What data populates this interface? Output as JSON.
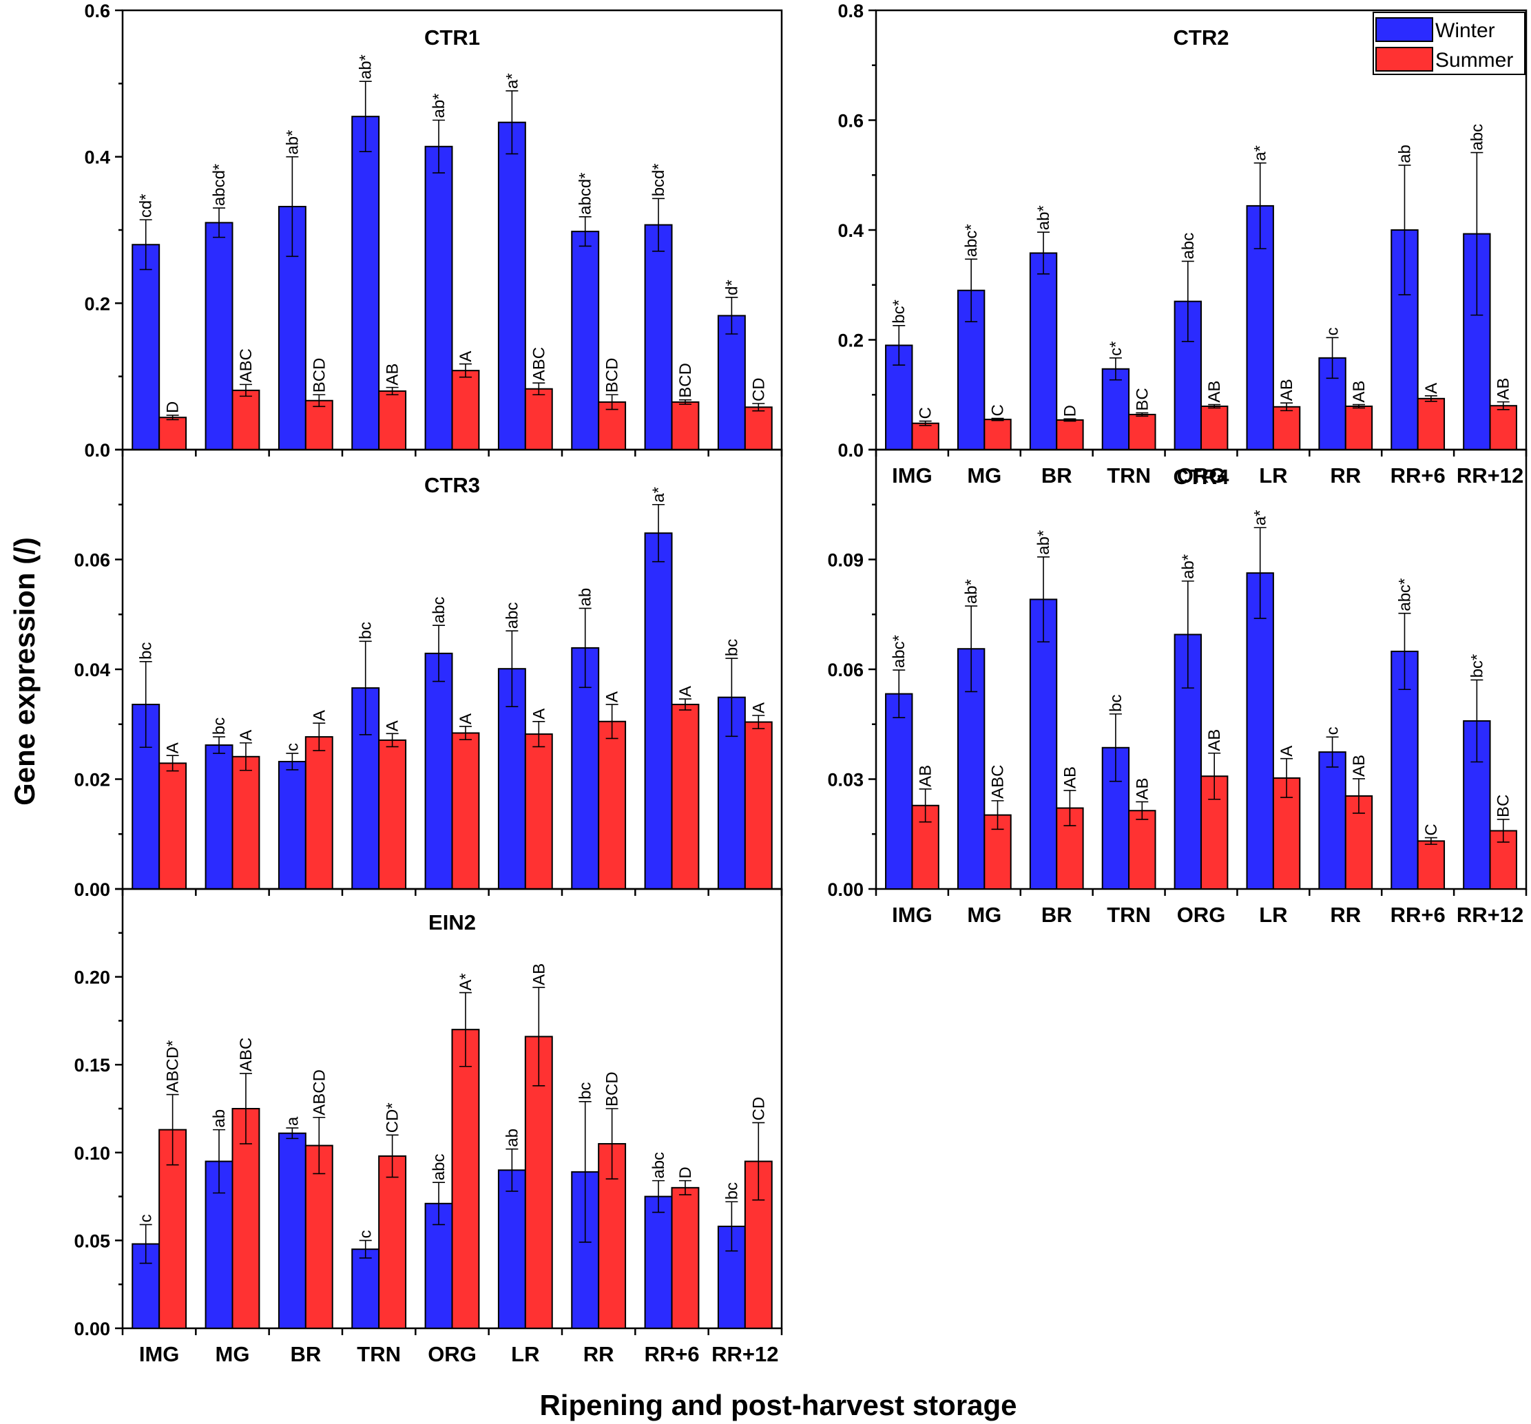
{
  "ylabel": "Gene expression (/)",
  "xlabel": "Ripening and post-harvest storage",
  "colors": {
    "winter": "#2b2bff",
    "summer": "#ff3232",
    "axis": "#000000"
  },
  "chart_data": [
    {
      "type": "bar",
      "title": "CTR1",
      "categories": [
        "IMG",
        "MG",
        "BR",
        "TRN",
        "ORG",
        "LR",
        "RR",
        "RR+6",
        "RR+12"
      ],
      "ylim": [
        0,
        0.6
      ],
      "yticks": [
        "0.0",
        "0.2",
        "0.4",
        "0.6"
      ],
      "series": [
        {
          "name": "Winter",
          "values": [
            0.28,
            0.31,
            0.332,
            0.455,
            0.414,
            0.447,
            0.298,
            0.307,
            0.183
          ],
          "errors": [
            0.034,
            0.02,
            0.068,
            0.048,
            0.036,
            0.043,
            0.02,
            0.036,
            0.025
          ],
          "labels": [
            "cd*",
            "abcd*",
            "ab*",
            "ab*",
            "ab*",
            "a*",
            "abcd*",
            "bcd*",
            "d*"
          ]
        },
        {
          "name": "Summer",
          "values": [
            0.044,
            0.081,
            0.067,
            0.08,
            0.108,
            0.083,
            0.065,
            0.065,
            0.058
          ],
          "errors": [
            0.003,
            0.008,
            0.008,
            0.005,
            0.009,
            0.008,
            0.01,
            0.003,
            0.005
          ],
          "labels": [
            "D",
            "ABC",
            "BCD",
            "AB",
            "A",
            "ABC",
            "BCD",
            "BCD",
            "CD"
          ]
        }
      ]
    },
    {
      "type": "bar",
      "title": "CTR2",
      "categories": [
        "IMG",
        "MG",
        "BR",
        "TRN",
        "ORG",
        "LR",
        "RR",
        "RR+6",
        "RR+12"
      ],
      "ylim": [
        0,
        0.8
      ],
      "yticks": [
        "0.0",
        "0.2",
        "0.4",
        "0.6",
        "0.8"
      ],
      "series": [
        {
          "name": "Winter",
          "values": [
            0.19,
            0.29,
            0.358,
            0.147,
            0.27,
            0.444,
            0.167,
            0.4,
            0.393
          ],
          "errors": [
            0.036,
            0.057,
            0.038,
            0.02,
            0.073,
            0.078,
            0.037,
            0.118,
            0.148
          ],
          "labels": [
            "bc*",
            "abc*",
            "ab*",
            "c*",
            "abc",
            "a*",
            "c",
            "ab",
            "abc"
          ]
        },
        {
          "name": "Summer",
          "values": [
            0.048,
            0.055,
            0.054,
            0.064,
            0.079,
            0.078,
            0.079,
            0.093,
            0.08
          ],
          "errors": [
            0.004,
            0.002,
            0.002,
            0.003,
            0.003,
            0.007,
            0.003,
            0.005,
            0.007
          ],
          "labels": [
            "C",
            "C",
            "D",
            "BC",
            "AB",
            "AB",
            "AB",
            "A",
            "AB"
          ]
        }
      ]
    },
    {
      "type": "bar",
      "title": "CTR3",
      "categories": [
        "IMG",
        "MG",
        "BR",
        "TRN",
        "ORG",
        "LR",
        "RR",
        "RR+6",
        "RR+12"
      ],
      "ylim": [
        0,
        0.08
      ],
      "yticks": [
        "0.00",
        "0.02",
        "0.04",
        "0.06"
      ],
      "series": [
        {
          "name": "Winter",
          "values": [
            0.0336,
            0.0262,
            0.0232,
            0.0366,
            0.0429,
            0.0401,
            0.0439,
            0.0648,
            0.0349
          ],
          "errors": [
            0.0078,
            0.0015,
            0.0015,
            0.0085,
            0.0051,
            0.0069,
            0.0072,
            0.0052,
            0.0071
          ],
          "labels": [
            "bc",
            "bc",
            "c",
            "bc",
            "abc",
            "abc",
            "ab",
            "a*",
            "bc"
          ]
        },
        {
          "name": "Summer",
          "values": [
            0.0229,
            0.0241,
            0.0277,
            0.0271,
            0.0284,
            0.0282,
            0.0305,
            0.0336,
            0.0304
          ],
          "errors": [
            0.0014,
            0.0025,
            0.0025,
            0.0012,
            0.0012,
            0.0023,
            0.0031,
            0.001,
            0.0012
          ],
          "labels": [
            "A",
            "A",
            "A",
            "A",
            "A",
            "A",
            "A",
            "A",
            "A"
          ]
        }
      ]
    },
    {
      "type": "bar",
      "title": "CTR4",
      "categories": [
        "IMG",
        "MG",
        "BR",
        "TRN",
        "ORG",
        "LR",
        "RR",
        "RR+6",
        "RR+12"
      ],
      "ylim": [
        0,
        0.12
      ],
      "yticks": [
        "0.00",
        "0.03",
        "0.06",
        "0.09"
      ],
      "series": [
        {
          "name": "Winter",
          "values": [
            0.0533,
            0.0656,
            0.0791,
            0.0386,
            0.0695,
            0.0863,
            0.0374,
            0.0649,
            0.0459
          ],
          "errors": [
            0.0065,
            0.0117,
            0.0116,
            0.0092,
            0.0146,
            0.0124,
            0.0041,
            0.0104,
            0.0112
          ],
          "labels": [
            "abc*",
            "ab*",
            "ab*",
            "bc",
            "ab*",
            "a*",
            "c",
            "abc*",
            "bc*"
          ]
        },
        {
          "name": "Summer",
          "values": [
            0.0228,
            0.0202,
            0.0221,
            0.0214,
            0.0308,
            0.0303,
            0.0254,
            0.0131,
            0.0159
          ],
          "errors": [
            0.0045,
            0.0039,
            0.0048,
            0.0024,
            0.0063,
            0.0053,
            0.0047,
            0.0009,
            0.0031
          ],
          "labels": [
            "AB",
            "ABC",
            "AB",
            "AB",
            "AB",
            "A",
            "AB",
            "C",
            "BC"
          ]
        }
      ]
    },
    {
      "type": "bar",
      "title": "EIN2",
      "categories": [
        "IMG",
        "MG",
        "BR",
        "TRN",
        "ORG",
        "LR",
        "RR",
        "RR+6",
        "RR+12"
      ],
      "ylim": [
        0,
        0.25
      ],
      "yticks": [
        "0.00",
        "0.05",
        "0.10",
        "0.15",
        "0.20"
      ],
      "series": [
        {
          "name": "Winter",
          "values": [
            0.048,
            0.095,
            0.111,
            0.045,
            0.071,
            0.09,
            0.089,
            0.075,
            0.058
          ],
          "errors": [
            0.011,
            0.018,
            0.003,
            0.005,
            0.012,
            0.012,
            0.04,
            0.009,
            0.014
          ],
          "labels": [
            "c",
            "ab",
            "a",
            "c",
            "abc",
            "ab",
            "bc",
            "abc",
            "bc"
          ]
        },
        {
          "name": "Summer",
          "values": [
            0.113,
            0.125,
            0.104,
            0.098,
            0.17,
            0.166,
            0.105,
            0.08,
            0.095
          ],
          "errors": [
            0.02,
            0.02,
            0.016,
            0.012,
            0.021,
            0.028,
            0.02,
            0.004,
            0.022
          ],
          "labels": [
            "ABCD*",
            "ABC",
            "ABCD",
            "CD*",
            "A*",
            "AB",
            "BCD",
            "D",
            "CD"
          ]
        }
      ]
    }
  ],
  "legend": {
    "position": "top-right",
    "entries": [
      "Winter",
      "Summer"
    ]
  }
}
